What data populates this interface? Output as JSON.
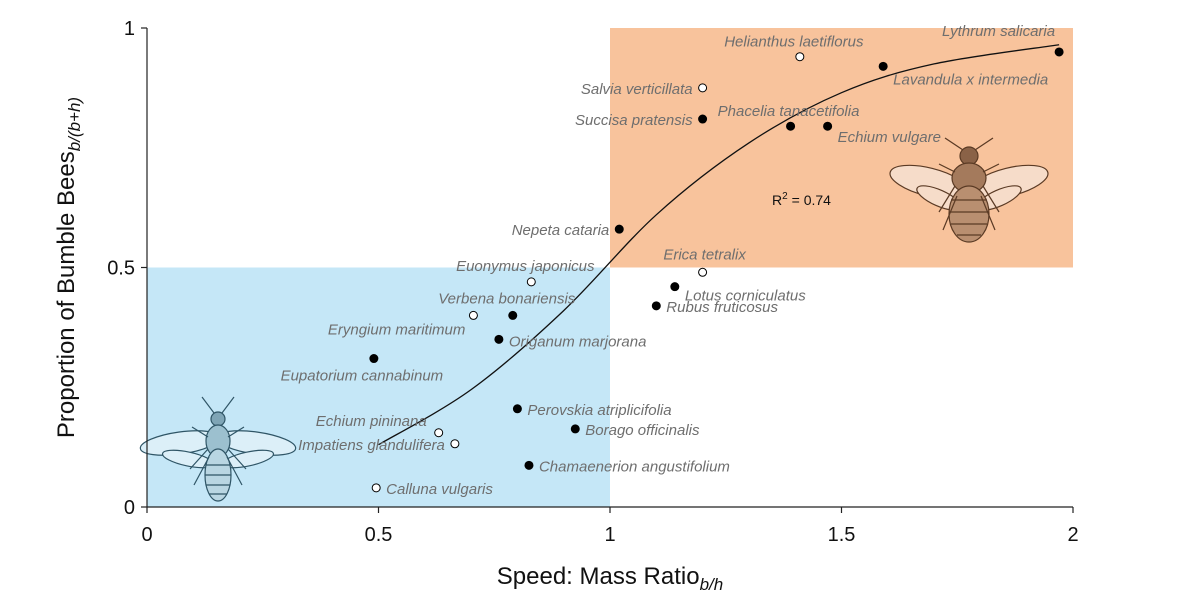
{
  "chart_data": {
    "type": "scatter",
    "xlabel": "Speed: Mass Ratio",
    "xlabel_sub": "b/h",
    "ylabel": "Proportion of Bumble Bees",
    "ylabel_sub": "b/(b+h)",
    "xlim": [
      0,
      2
    ],
    "ylim": [
      0,
      1
    ],
    "x_ticks": [
      {
        "value": 0,
        "label": "0"
      },
      {
        "value": 0.5,
        "label": "0.5"
      },
      {
        "value": 1,
        "label": "1"
      },
      {
        "value": 1.5,
        "label": "1.5"
      },
      {
        "value": 2,
        "label": "2"
      }
    ],
    "y_ticks": [
      {
        "value": 0,
        "label": "0"
      },
      {
        "value": 0.5,
        "label": "0.5"
      },
      {
        "value": 1,
        "label": "1"
      }
    ],
    "grid": false,
    "regions": [
      {
        "x": [
          0,
          1
        ],
        "y": [
          0,
          0.5
        ],
        "color": "#c5e7f7",
        "image": "honey-bee-illustration"
      },
      {
        "x": [
          1,
          2
        ],
        "y": [
          0.5,
          1
        ],
        "color": "#f8c39c",
        "image": "bumble-bee-illustration"
      }
    ],
    "annotation": {
      "prefix": "R",
      "sup": "2",
      "suffix": " = 0.74",
      "x": 1.35,
      "y": 0.63
    },
    "fit_curve": {
      "x": [
        0.5,
        0.7,
        0.9,
        1.1,
        1.3,
        1.5,
        1.7,
        1.97
      ],
      "y": [
        0.13,
        0.245,
        0.41,
        0.61,
        0.76,
        0.865,
        0.925,
        0.965
      ]
    },
    "points": [
      {
        "label": "Lythrum salicaria",
        "x": 1.97,
        "y": 0.95,
        "filled": true
      },
      {
        "label": "Helianthus laetiflorus",
        "x": 1.41,
        "y": 0.94,
        "filled": false
      },
      {
        "label": "Lavandula x intermedia",
        "x": 1.59,
        "y": 0.92,
        "filled": true
      },
      {
        "label": "Salvia verticillata",
        "x": 1.2,
        "y": 0.875,
        "filled": false
      },
      {
        "label": "Succisa pratensis",
        "x": 1.2,
        "y": 0.81,
        "filled": true
      },
      {
        "label": "Phacelia tanacetifolia",
        "x": 1.39,
        "y": 0.795,
        "filled": true
      },
      {
        "label": "Echium vulgare",
        "x": 1.47,
        "y": 0.795,
        "filled": true
      },
      {
        "label": "Nepeta cataria",
        "x": 1.02,
        "y": 0.58,
        "filled": true
      },
      {
        "label": "Erica tetralix",
        "x": 1.2,
        "y": 0.49,
        "filled": false
      },
      {
        "label": "Euonymus japonicus",
        "x": 0.83,
        "y": 0.47,
        "filled": false
      },
      {
        "label": "Lotus corniculatus",
        "x": 1.14,
        "y": 0.46,
        "filled": true
      },
      {
        "label": "Rubus fruticosus",
        "x": 1.1,
        "y": 0.42,
        "filled": true
      },
      {
        "label": "Verbena bonariensis",
        "x": 0.79,
        "y": 0.4,
        "filled": true
      },
      {
        "label": "Eryngium maritimum",
        "x": 0.705,
        "y": 0.4,
        "filled": false
      },
      {
        "label": "Origanum marjorana",
        "x": 0.76,
        "y": 0.35,
        "filled": true
      },
      {
        "label": "Eupatorium cannabinum",
        "x": 0.49,
        "y": 0.31,
        "filled": true
      },
      {
        "label": "Perovskia atriplicifolia",
        "x": 0.8,
        "y": 0.205,
        "filled": true
      },
      {
        "label": "Borago officinalis",
        "x": 0.925,
        "y": 0.163,
        "filled": true
      },
      {
        "label": "Echium pininana",
        "x": 0.63,
        "y": 0.155,
        "filled": false
      },
      {
        "label": "Impatiens glandulifera",
        "x": 0.665,
        "y": 0.132,
        "filled": false
      },
      {
        "label": "Chamaenerion angustifolium",
        "x": 0.825,
        "y": 0.087,
        "filled": true
      },
      {
        "label": "Calluna vulgaris",
        "x": 0.495,
        "y": 0.04,
        "filled": false
      }
    ]
  }
}
